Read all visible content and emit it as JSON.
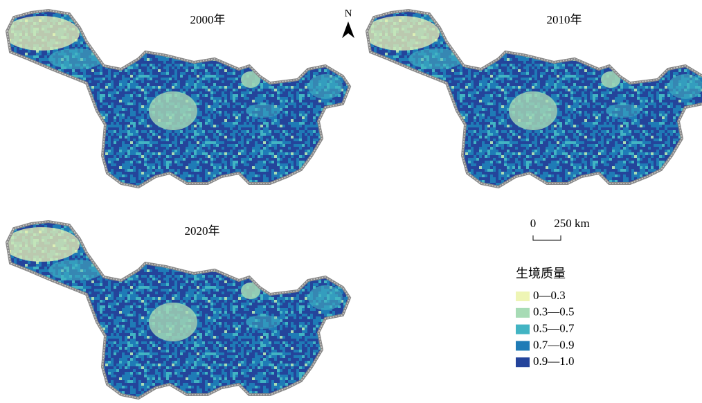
{
  "maps": [
    {
      "title": "2000年"
    },
    {
      "title": "2010年"
    },
    {
      "title": "2020年"
    }
  ],
  "north_arrow": {
    "label": "N"
  },
  "scale_bar": {
    "labels": [
      "0",
      "250 km"
    ]
  },
  "legend": {
    "title": "生境质量",
    "items": [
      {
        "label": "0—0.3",
        "color": "#eef5b5"
      },
      {
        "label": "0.3—0.5",
        "color": "#a7dbb5"
      },
      {
        "label": "0.5—0.7",
        "color": "#42b4c3"
      },
      {
        "label": "0.7—0.9",
        "color": "#1f7bb6"
      },
      {
        "label": "0.9—1.0",
        "color": "#24449b"
      }
    ]
  }
}
